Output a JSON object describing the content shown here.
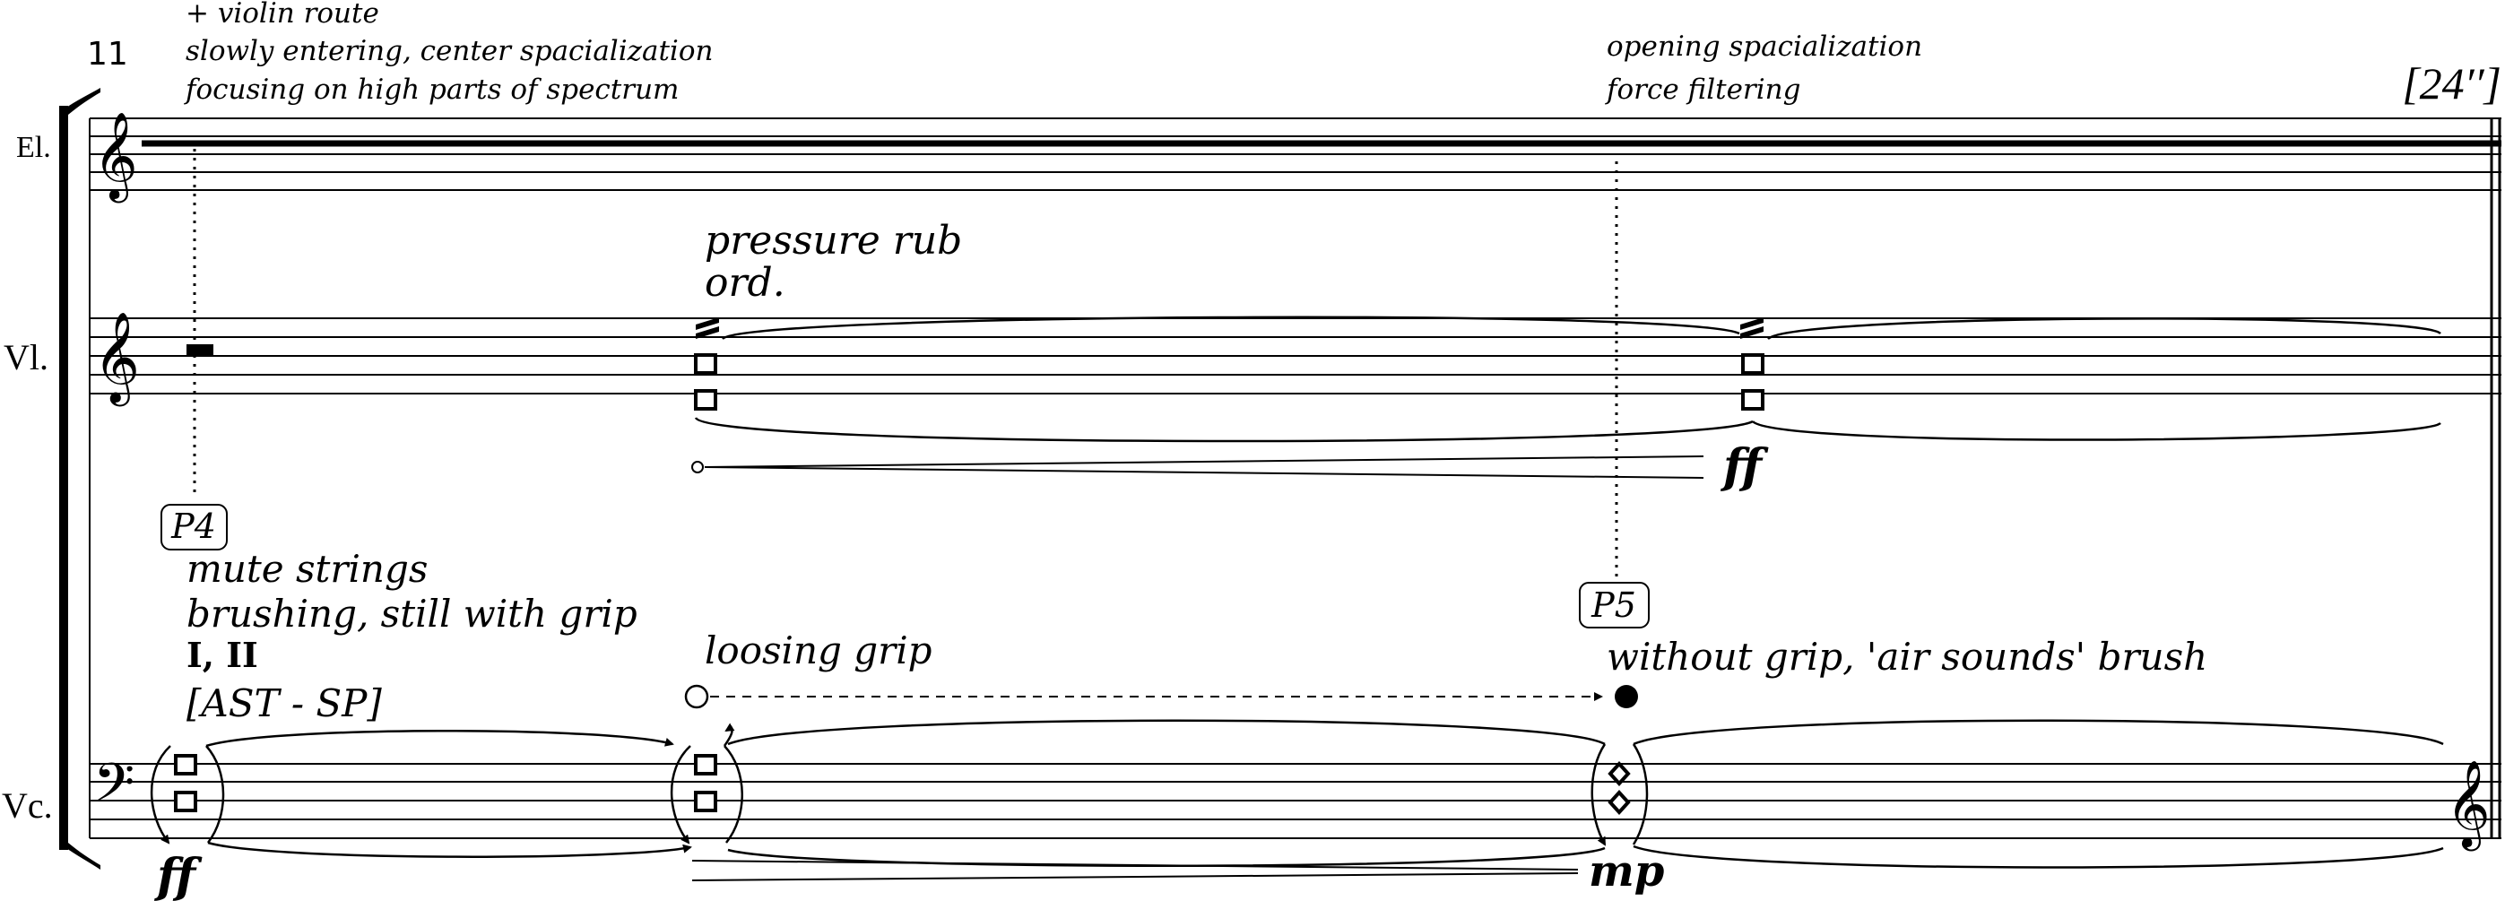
{
  "score": {
    "measure_number": "11",
    "time_marking": "[24′′]",
    "instruments": {
      "electronics": "El.",
      "violin": "Vl.",
      "cello": "Vc."
    },
    "electronics_notes": {
      "first": [
        "+ violin route",
        "slowly entering, center spacialization",
        "focusing on high parts of spectrum"
      ],
      "second": [
        "opening spacialization",
        "force filtering"
      ]
    },
    "violin": {
      "technique": [
        "pressure rub",
        "ord."
      ],
      "dynamic": "ff"
    },
    "cues": {
      "p4": "P4",
      "p5": "P5"
    },
    "cello": {
      "technique": [
        "mute strings",
        "brushing, still with grip"
      ],
      "strings": "I, II",
      "position": "[AST - SP]",
      "start_dynamic": "ff",
      "grip_change": "loosing grip",
      "air_sounds": "without grip, 'air sounds' brush",
      "end_dynamic": "mp"
    },
    "clefs": {
      "electronics": "treble",
      "violin": "treble",
      "cello": "bass",
      "cello_change": "treble"
    }
  }
}
